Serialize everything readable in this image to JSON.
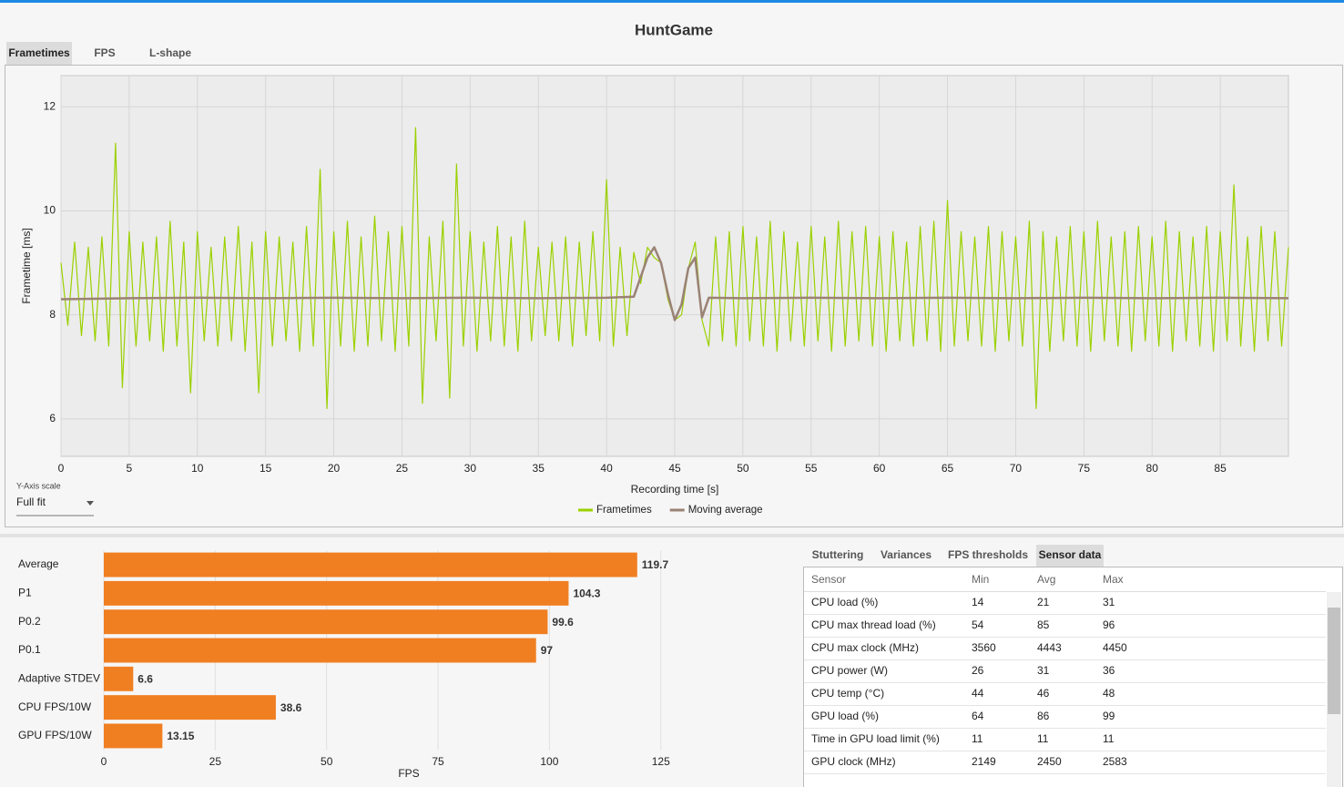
{
  "title": "HuntGame",
  "tabs": [
    "Frametimes",
    "FPS",
    "L-shape"
  ],
  "controls": {
    "y_axis_scale_label": "Y-Axis scale",
    "y_axis_scale_value": "Full fit"
  },
  "chart_data": [
    {
      "type": "line",
      "y_label": "Frametime [ms]",
      "x_label": "Recording time [s]",
      "xlim": [
        0,
        90
      ],
      "ylim": [
        5.28,
        12.6
      ],
      "xticks": [
        0,
        5,
        10,
        15,
        20,
        25,
        30,
        35,
        40,
        45,
        50,
        55,
        60,
        65,
        70,
        75,
        80,
        85
      ],
      "yticks": [
        6,
        8,
        10,
        12
      ],
      "grid": true,
      "legend": "bottom",
      "series": [
        {
          "name": "Frametimes",
          "color": "#9bd100",
          "x": [
            0,
            0.5,
            1,
            1.5,
            2,
            2.5,
            3,
            3.5,
            4,
            4.5,
            5,
            5.5,
            6,
            6.5,
            7,
            7.5,
            8,
            8.5,
            9,
            9.5,
            10,
            10.5,
            11,
            11.5,
            12,
            12.5,
            13,
            13.5,
            14,
            14.5,
            15,
            15.5,
            16,
            16.5,
            17,
            17.5,
            18,
            18.5,
            19,
            19.5,
            20,
            20.5,
            21,
            21.5,
            22,
            22.5,
            23,
            23.5,
            24,
            24.5,
            25,
            25.5,
            26,
            26.5,
            27,
            27.5,
            28,
            28.5,
            29,
            29.5,
            30,
            30.5,
            31,
            31.5,
            32,
            32.5,
            33,
            33.5,
            34,
            34.5,
            35,
            35.5,
            36,
            36.5,
            37,
            37.5,
            38,
            38.5,
            39,
            39.5,
            40,
            40.5,
            41,
            41.5,
            42,
            42.5,
            43,
            43.5,
            44,
            44.5,
            45,
            45.5,
            46,
            46.5,
            47,
            47.5,
            48,
            48.5,
            49,
            49.5,
            50,
            50.5,
            51,
            51.5,
            52,
            52.5,
            53,
            53.5,
            54,
            54.5,
            55,
            55.5,
            56,
            56.5,
            57,
            57.5,
            58,
            58.5,
            59,
            59.5,
            60,
            60.5,
            61,
            61.5,
            62,
            62.5,
            63,
            63.5,
            64,
            64.5,
            65,
            65.5,
            66,
            66.5,
            67,
            67.5,
            68,
            68.5,
            69,
            69.5,
            70,
            70.5,
            71,
            71.5,
            72,
            72.5,
            73,
            73.5,
            74,
            74.5,
            75,
            75.5,
            76,
            76.5,
            77,
            77.5,
            78,
            78.5,
            79,
            79.5,
            80,
            80.5,
            81,
            81.5,
            82,
            82.5,
            83,
            83.5,
            84,
            84.5,
            85,
            85.5,
            86,
            86.5,
            87,
            87.5,
            88,
            88.5,
            89,
            89.5,
            90
          ],
          "values": [
            9.0,
            7.8,
            9.4,
            7.6,
            9.3,
            7.5,
            9.5,
            7.4,
            11.3,
            6.6,
            9.6,
            7.4,
            9.4,
            7.5,
            9.5,
            7.3,
            9.8,
            7.4,
            9.4,
            6.5,
            9.6,
            7.5,
            9.3,
            7.4,
            9.5,
            7.5,
            9.7,
            7.3,
            9.4,
            6.5,
            9.6,
            7.4,
            9.5,
            7.5,
            9.4,
            7.3,
            9.7,
            7.4,
            10.8,
            6.2,
            9.6,
            7.4,
            9.8,
            7.3,
            9.5,
            7.4,
            9.9,
            7.5,
            9.6,
            7.3,
            9.7,
            7.4,
            11.6,
            6.3,
            9.5,
            7.5,
            9.8,
            6.4,
            10.9,
            7.4,
            9.6,
            7.3,
            9.4,
            7.5,
            9.7,
            7.4,
            9.5,
            7.3,
            9.8,
            7.5,
            9.3,
            7.6,
            9.4,
            7.5,
            9.5,
            7.4,
            9.4,
            7.6,
            9.6,
            7.5,
            10.6,
            7.4,
            9.3,
            7.6,
            9.2,
            8.6,
            9.3,
            9.1,
            9.0,
            8.3,
            7.9,
            8.0,
            8.9,
            9.4,
            7.9,
            7.4,
            9.5,
            7.5,
            9.6,
            7.4,
            9.7,
            7.5,
            9.5,
            7.4,
            9.8,
            7.3,
            9.6,
            7.5,
            9.4,
            7.4,
            9.7,
            7.5,
            9.5,
            7.3,
            9.8,
            7.4,
            9.6,
            7.5,
            9.7,
            7.4,
            9.5,
            7.3,
            9.6,
            7.5,
            9.4,
            7.4,
            9.7,
            7.5,
            9.8,
            7.3,
            10.2,
            7.4,
            9.6,
            7.5,
            9.5,
            7.4,
            9.7,
            7.3,
            9.6,
            7.5,
            9.5,
            7.4,
            9.8,
            6.2,
            9.6,
            7.3,
            9.5,
            7.5,
            9.7,
            7.4,
            9.6,
            7.3,
            9.8,
            7.5,
            9.5,
            7.4,
            9.6,
            7.3,
            9.7,
            7.5,
            9.5,
            7.4,
            9.8,
            7.3,
            9.6,
            7.5,
            9.5,
            7.4,
            9.7,
            7.3,
            9.6,
            7.5,
            10.5,
            7.4,
            9.5,
            7.3,
            9.7,
            7.5,
            9.6,
            7.4,
            9.3
          ]
        },
        {
          "name": "Moving average",
          "color": "#9a8275",
          "x": [
            0,
            5,
            10,
            15,
            20,
            25,
            30,
            35,
            40,
            42,
            43,
            43.5,
            44,
            44.5,
            45,
            45.5,
            46,
            46.5,
            47,
            47.5,
            50,
            55,
            60,
            65,
            70,
            75,
            80,
            85,
            90
          ],
          "values": [
            8.3,
            8.32,
            8.33,
            8.32,
            8.33,
            8.32,
            8.33,
            8.32,
            8.33,
            8.35,
            9.1,
            9.3,
            9.0,
            8.4,
            7.9,
            8.2,
            8.9,
            9.1,
            7.95,
            8.33,
            8.32,
            8.33,
            8.32,
            8.33,
            8.32,
            8.33,
            8.32,
            8.33,
            8.32
          ]
        }
      ]
    },
    {
      "type": "bar",
      "orientation": "horizontal",
      "x_label": "FPS",
      "categories": [
        "Average",
        "P1",
        "P0.2",
        "P0.1",
        "Adaptive STDEV",
        "CPU FPS/10W",
        "GPU FPS/10W"
      ],
      "values": [
        119.7,
        104.3,
        99.6,
        97,
        6.6,
        38.6,
        13.15
      ],
      "color": "#f07f22",
      "xlim": [
        0,
        132
      ],
      "xticks": [
        0,
        25,
        50,
        75,
        100,
        125
      ],
      "grid": true
    }
  ],
  "side_tabs": [
    "Stuttering",
    "Variances",
    "FPS thresholds",
    "Sensor data"
  ],
  "table": {
    "columns": [
      "Sensor",
      "Min",
      "Avg",
      "Max"
    ],
    "rows": [
      [
        "CPU load (%)",
        14,
        21,
        31
      ],
      [
        "CPU max thread load (%)",
        54,
        85,
        96
      ],
      [
        "CPU max clock (MHz)",
        3560,
        4443,
        4450
      ],
      [
        "CPU power (W)",
        26,
        31,
        36
      ],
      [
        "CPU temp (°C)",
        44,
        46,
        48
      ],
      [
        "GPU load (%)",
        64,
        86,
        99
      ],
      [
        "Time in GPU load limit (%)",
        11,
        11,
        11
      ],
      [
        "GPU clock (MHz)",
        2149,
        2450,
        2583
      ]
    ]
  }
}
